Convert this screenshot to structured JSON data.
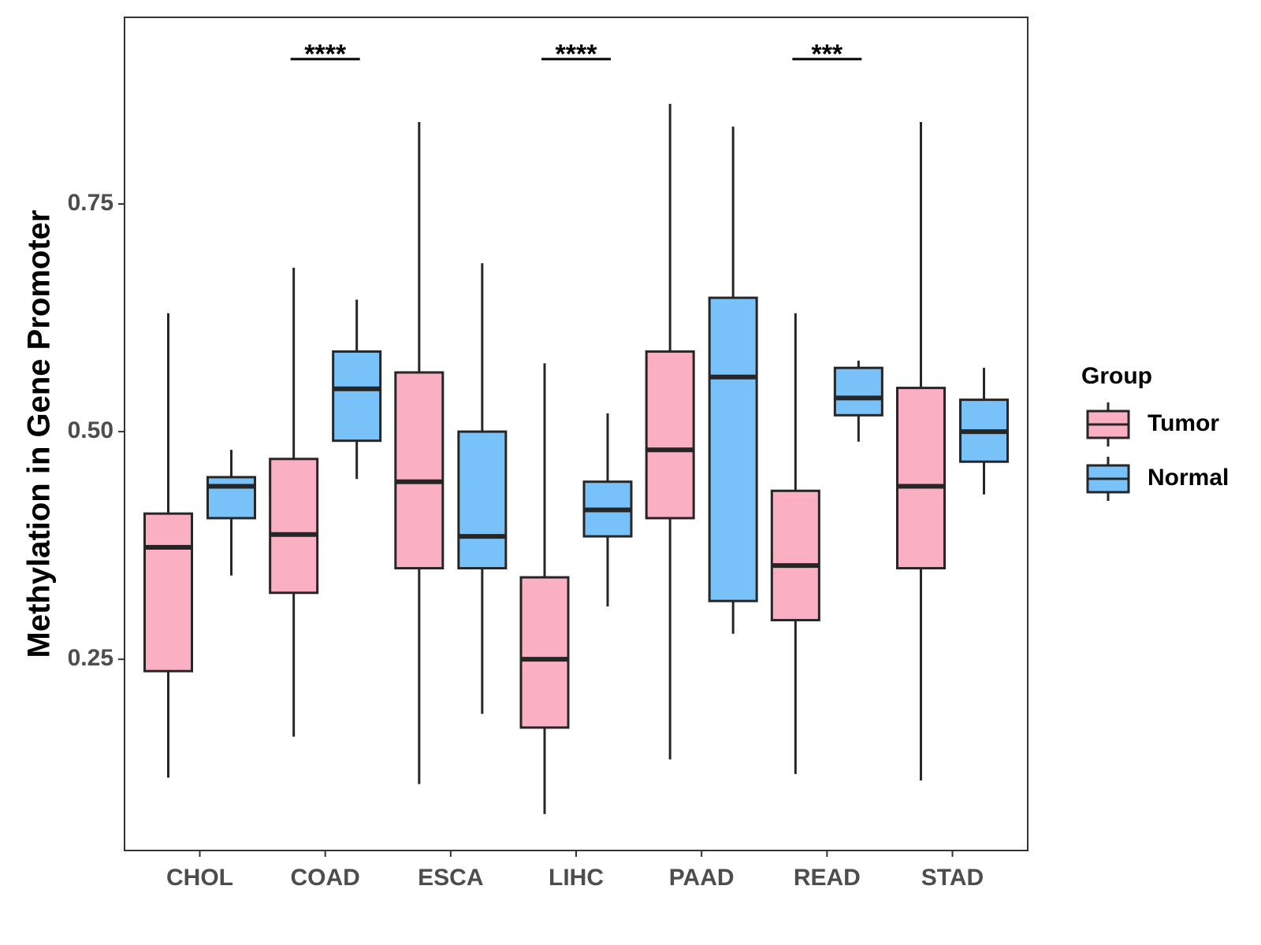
{
  "chart_data": {
    "type": "boxplot",
    "title": "",
    "xlabel": "",
    "ylabel": "Methylation in Gene Promoter",
    "ylim": [
      0.04,
      0.955
    ],
    "yticks": [
      0.25,
      0.5,
      0.75
    ],
    "ytick_labels": [
      "0.25",
      "0.50",
      "0.75"
    ],
    "categories": [
      "CHOL",
      "COAD",
      "ESCA",
      "LIHC",
      "PAAD",
      "READ",
      "STAD"
    ],
    "legend": {
      "title": "Group",
      "placement": "right",
      "entries": [
        {
          "name": "Tumor",
          "color": "#FBAFC2"
        },
        {
          "name": "Normal",
          "color": "#79C2F9"
        }
      ]
    },
    "series": [
      {
        "name": "Tumor",
        "color": "#FBAFC2",
        "boxes": [
          {
            "min": 0.12,
            "q1": 0.237,
            "median": 0.373,
            "q3": 0.41,
            "max": 0.63
          },
          {
            "min": 0.165,
            "q1": 0.323,
            "median": 0.387,
            "q3": 0.47,
            "max": 0.68
          },
          {
            "min": 0.113,
            "q1": 0.35,
            "median": 0.445,
            "q3": 0.565,
            "max": 0.84
          },
          {
            "min": 0.08,
            "q1": 0.175,
            "median": 0.25,
            "q3": 0.34,
            "max": 0.575
          },
          {
            "min": 0.14,
            "q1": 0.405,
            "median": 0.48,
            "q3": 0.588,
            "max": 0.86
          },
          {
            "min": 0.124,
            "q1": 0.293,
            "median": 0.353,
            "q3": 0.435,
            "max": 0.63
          },
          {
            "min": 0.117,
            "q1": 0.35,
            "median": 0.44,
            "q3": 0.548,
            "max": 0.84
          }
        ]
      },
      {
        "name": "Normal",
        "color": "#79C2F9",
        "boxes": [
          {
            "min": 0.342,
            "q1": 0.405,
            "median": 0.44,
            "q3": 0.45,
            "max": 0.48
          },
          {
            "min": 0.448,
            "q1": 0.49,
            "median": 0.547,
            "q3": 0.588,
            "max": 0.645
          },
          {
            "min": 0.19,
            "q1": 0.35,
            "median": 0.385,
            "q3": 0.5,
            "max": 0.685
          },
          {
            "min": 0.308,
            "q1": 0.385,
            "median": 0.414,
            "q3": 0.445,
            "max": 0.52
          },
          {
            "min": 0.278,
            "q1": 0.314,
            "median": 0.56,
            "q3": 0.647,
            "max": 0.835
          },
          {
            "min": 0.489,
            "q1": 0.518,
            "median": 0.537,
            "q3": 0.57,
            "max": 0.578
          },
          {
            "min": 0.431,
            "q1": 0.467,
            "median": 0.5,
            "q3": 0.535,
            "max": 0.57
          }
        ]
      }
    ],
    "significance": [
      {
        "category": "COAD",
        "label": "****"
      },
      {
        "category": "LIHC",
        "label": "****"
      },
      {
        "category": "READ",
        "label": "***"
      }
    ],
    "grid": false
  }
}
